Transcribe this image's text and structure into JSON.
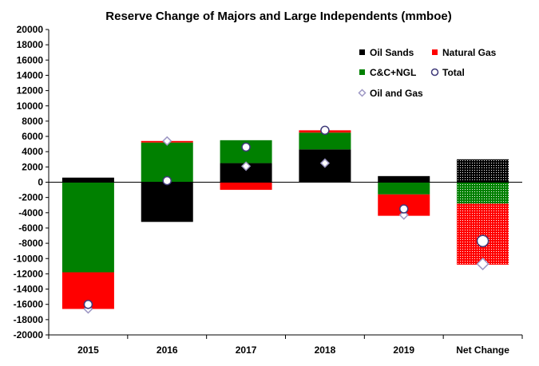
{
  "chart_data": {
    "type": "bar",
    "stacked": true,
    "title": "Reserve Change of Majors and Large Independents (mmboe)",
    "categories": [
      "2015",
      "2016",
      "2017",
      "2018",
      "2019",
      "Net Change"
    ],
    "ylim": [
      -20000,
      20000
    ],
    "ytick_step": 2000,
    "grid": false,
    "legend_position": "top-right",
    "series": [
      {
        "name": "Oil Sands",
        "kind": "bar",
        "color": "#000000",
        "values": [
          600,
          -5200,
          2500,
          4300,
          800,
          3000
        ]
      },
      {
        "name": "C&C+NGL",
        "kind": "bar",
        "color": "#008000",
        "values": [
          -11800,
          5200,
          3000,
          2200,
          -1600,
          -2800
        ]
      },
      {
        "name": "Natural Gas",
        "kind": "bar",
        "color": "#ff0000",
        "values": [
          -4800,
          200,
          -1000,
          300,
          -2800,
          -8000
        ]
      },
      {
        "name": "Total",
        "kind": "marker",
        "color": "#3f3a7a",
        "values": [
          -16000,
          200,
          4600,
          6800,
          -3500,
          -7700
        ]
      },
      {
        "name": "Oil and Gas",
        "kind": "marker",
        "color": "#9d97c4",
        "values": [
          -16600,
          5400,
          2100,
          2500,
          -4300,
          -10700
        ]
      }
    ],
    "patterned_categories": [
      "Net Change"
    ]
  }
}
